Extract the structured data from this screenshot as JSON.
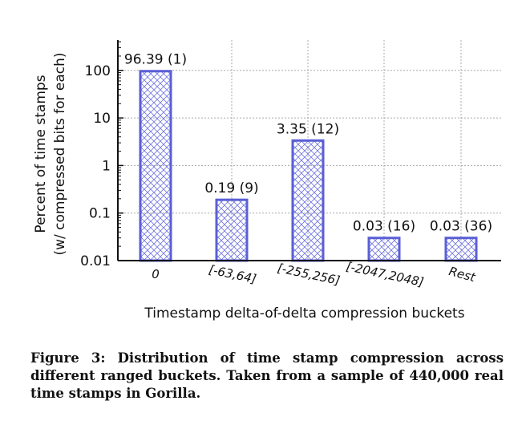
{
  "chart_data": {
    "type": "bar",
    "categories": [
      "0",
      "[-63,64]",
      "[-255,256]",
      "[-2047,2048]",
      "Rest"
    ],
    "values": [
      96.39,
      0.19,
      3.35,
      0.03,
      0.03
    ],
    "bits": [
      1,
      9,
      12,
      16,
      36
    ],
    "data_labels": [
      "96.39 (1)",
      "0.19 (9)",
      "3.35 (12)",
      "0.03 (16)",
      "0.03 (36)"
    ],
    "ylabel_line1": "Percent of time stamps",
    "ylabel_line2": "(w/ compressed bits for each)",
    "xlabel": "Timestamp delta-of-delta compression buckets",
    "yscale": "log",
    "ylim": [
      0.01,
      300
    ],
    "yticks": [
      0.01,
      0.1,
      1,
      10,
      100
    ],
    "ytick_labels": [
      "0.01",
      "0.1",
      "1",
      "10",
      "100"
    ],
    "grid": true,
    "bar_color": "#5a5fd6"
  },
  "caption": "Figure 3: Distribution of time stamp compression across different ranged buckets. Taken from a sample of 440,000 real time stamps in Gorilla."
}
